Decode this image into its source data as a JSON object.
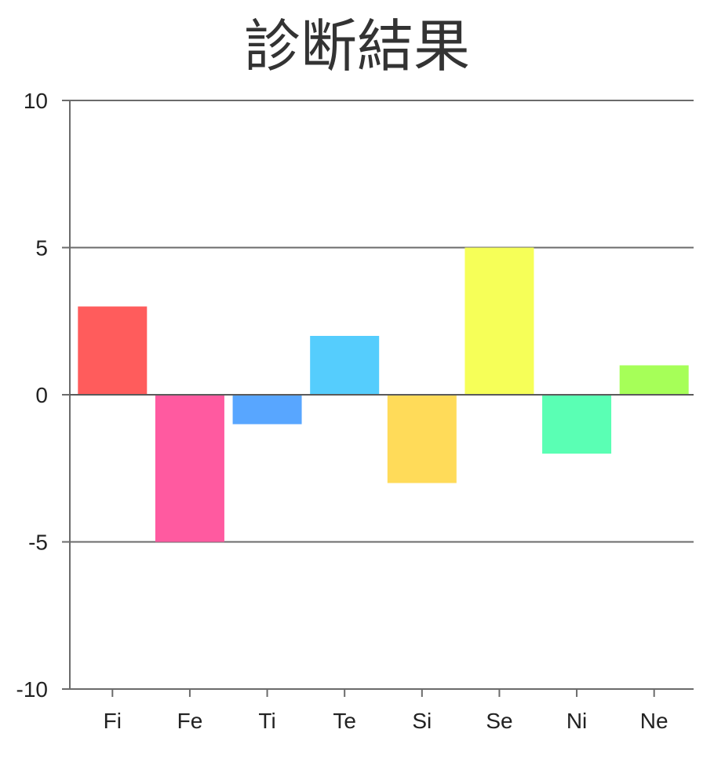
{
  "chart_data": {
    "type": "bar",
    "title": "診断結果",
    "categories": [
      "Fi",
      "Fe",
      "Ti",
      "Te",
      "Si",
      "Se",
      "Ni",
      "Ne"
    ],
    "values": [
      3,
      -5,
      -1,
      2,
      -3,
      5,
      -2,
      1
    ],
    "colors": [
      "#ff5c5c",
      "#ff5aa0",
      "#58a6ff",
      "#55cdfd",
      "#ffdb59",
      "#f6ff58",
      "#5affb4",
      "#a6ff58"
    ],
    "ylim": [
      -10,
      10
    ],
    "yticks": [
      10,
      5,
      0,
      -5,
      -10
    ],
    "xlabel": "",
    "ylabel": "",
    "grid": true,
    "legend": "none"
  }
}
